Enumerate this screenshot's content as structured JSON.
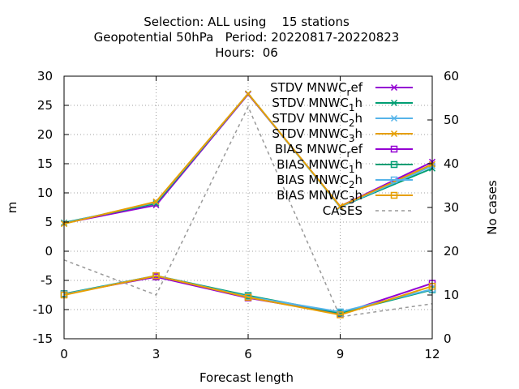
{
  "chart_data": {
    "type": "line",
    "title": [
      "Selection: ALL using    15 stations",
      "Geopotential 50hPa   Period: 20220817-20220823",
      "Hours:  06"
    ],
    "xlabel": "Forecast length",
    "ylabel": "m",
    "y2label": "No cases",
    "x": [
      0,
      3,
      6,
      9,
      12
    ],
    "xlim": [
      0,
      12
    ],
    "ylim": [
      -15,
      30
    ],
    "y2lim": [
      0,
      60
    ],
    "xticks": [
      "0",
      "3",
      "6",
      "9",
      "12"
    ],
    "yticks": [
      "-15",
      "-10",
      "-5",
      "0",
      "5",
      "10",
      "15",
      "20",
      "25",
      "30"
    ],
    "y2ticks": [
      "0",
      "10",
      "20",
      "30",
      "40",
      "50",
      "60"
    ],
    "grid": true,
    "legend_position": "top-right",
    "series": [
      {
        "name": "STDV MNWC",
        "sub": "r",
        "suffix": "ef",
        "axis": "y",
        "marker": "x",
        "color": "#9400d3",
        "values": [
          4.8,
          7.9,
          26.9,
          7.7,
          15.3
        ]
      },
      {
        "name": "STDV MNWC",
        "sub": "1",
        "suffix": "h",
        "axis": "y",
        "marker": "x",
        "color": "#009e73",
        "values": [
          4.9,
          8.2,
          27.0,
          7.6,
          14.2
        ]
      },
      {
        "name": "STDV MNWC",
        "sub": "2",
        "suffix": "h",
        "axis": "y",
        "marker": "x",
        "color": "#56b4e9",
        "values": [
          4.8,
          8.4,
          27.0,
          7.6,
          14.6
        ]
      },
      {
        "name": "STDV MNWC",
        "sub": "3",
        "suffix": "h",
        "axis": "y",
        "marker": "x",
        "color": "#e69f00",
        "values": [
          4.7,
          8.5,
          27.0,
          7.7,
          14.9
        ]
      },
      {
        "name": "BIAS MNWC",
        "sub": "r",
        "suffix": "ef",
        "axis": "y",
        "marker": "square",
        "color": "#9400d3",
        "values": [
          -7.3,
          -4.4,
          -8.0,
          -10.7,
          -5.5
        ]
      },
      {
        "name": "BIAS MNWC",
        "sub": "1",
        "suffix": "h",
        "axis": "y",
        "marker": "square",
        "color": "#009e73",
        "values": [
          -7.3,
          -4.2,
          -7.6,
          -10.6,
          -6.6
        ]
      },
      {
        "name": "BIAS MNWC",
        "sub": "2",
        "suffix": "h",
        "axis": "y",
        "marker": "square",
        "color": "#56b4e9",
        "values": [
          -7.4,
          -4.2,
          -7.8,
          -10.4,
          -6.5
        ]
      },
      {
        "name": "BIAS MNWC",
        "sub": "3",
        "suffix": "h",
        "axis": "y",
        "marker": "square",
        "color": "#e69f00",
        "values": [
          -7.5,
          -4.2,
          -7.9,
          -10.9,
          -6.0
        ]
      },
      {
        "name": "CASES",
        "sub": "",
        "suffix": "",
        "axis": "y2",
        "marker": "none",
        "color": "#999999",
        "dashed": true,
        "values": [
          18,
          10,
          53,
          5,
          8
        ]
      }
    ]
  }
}
